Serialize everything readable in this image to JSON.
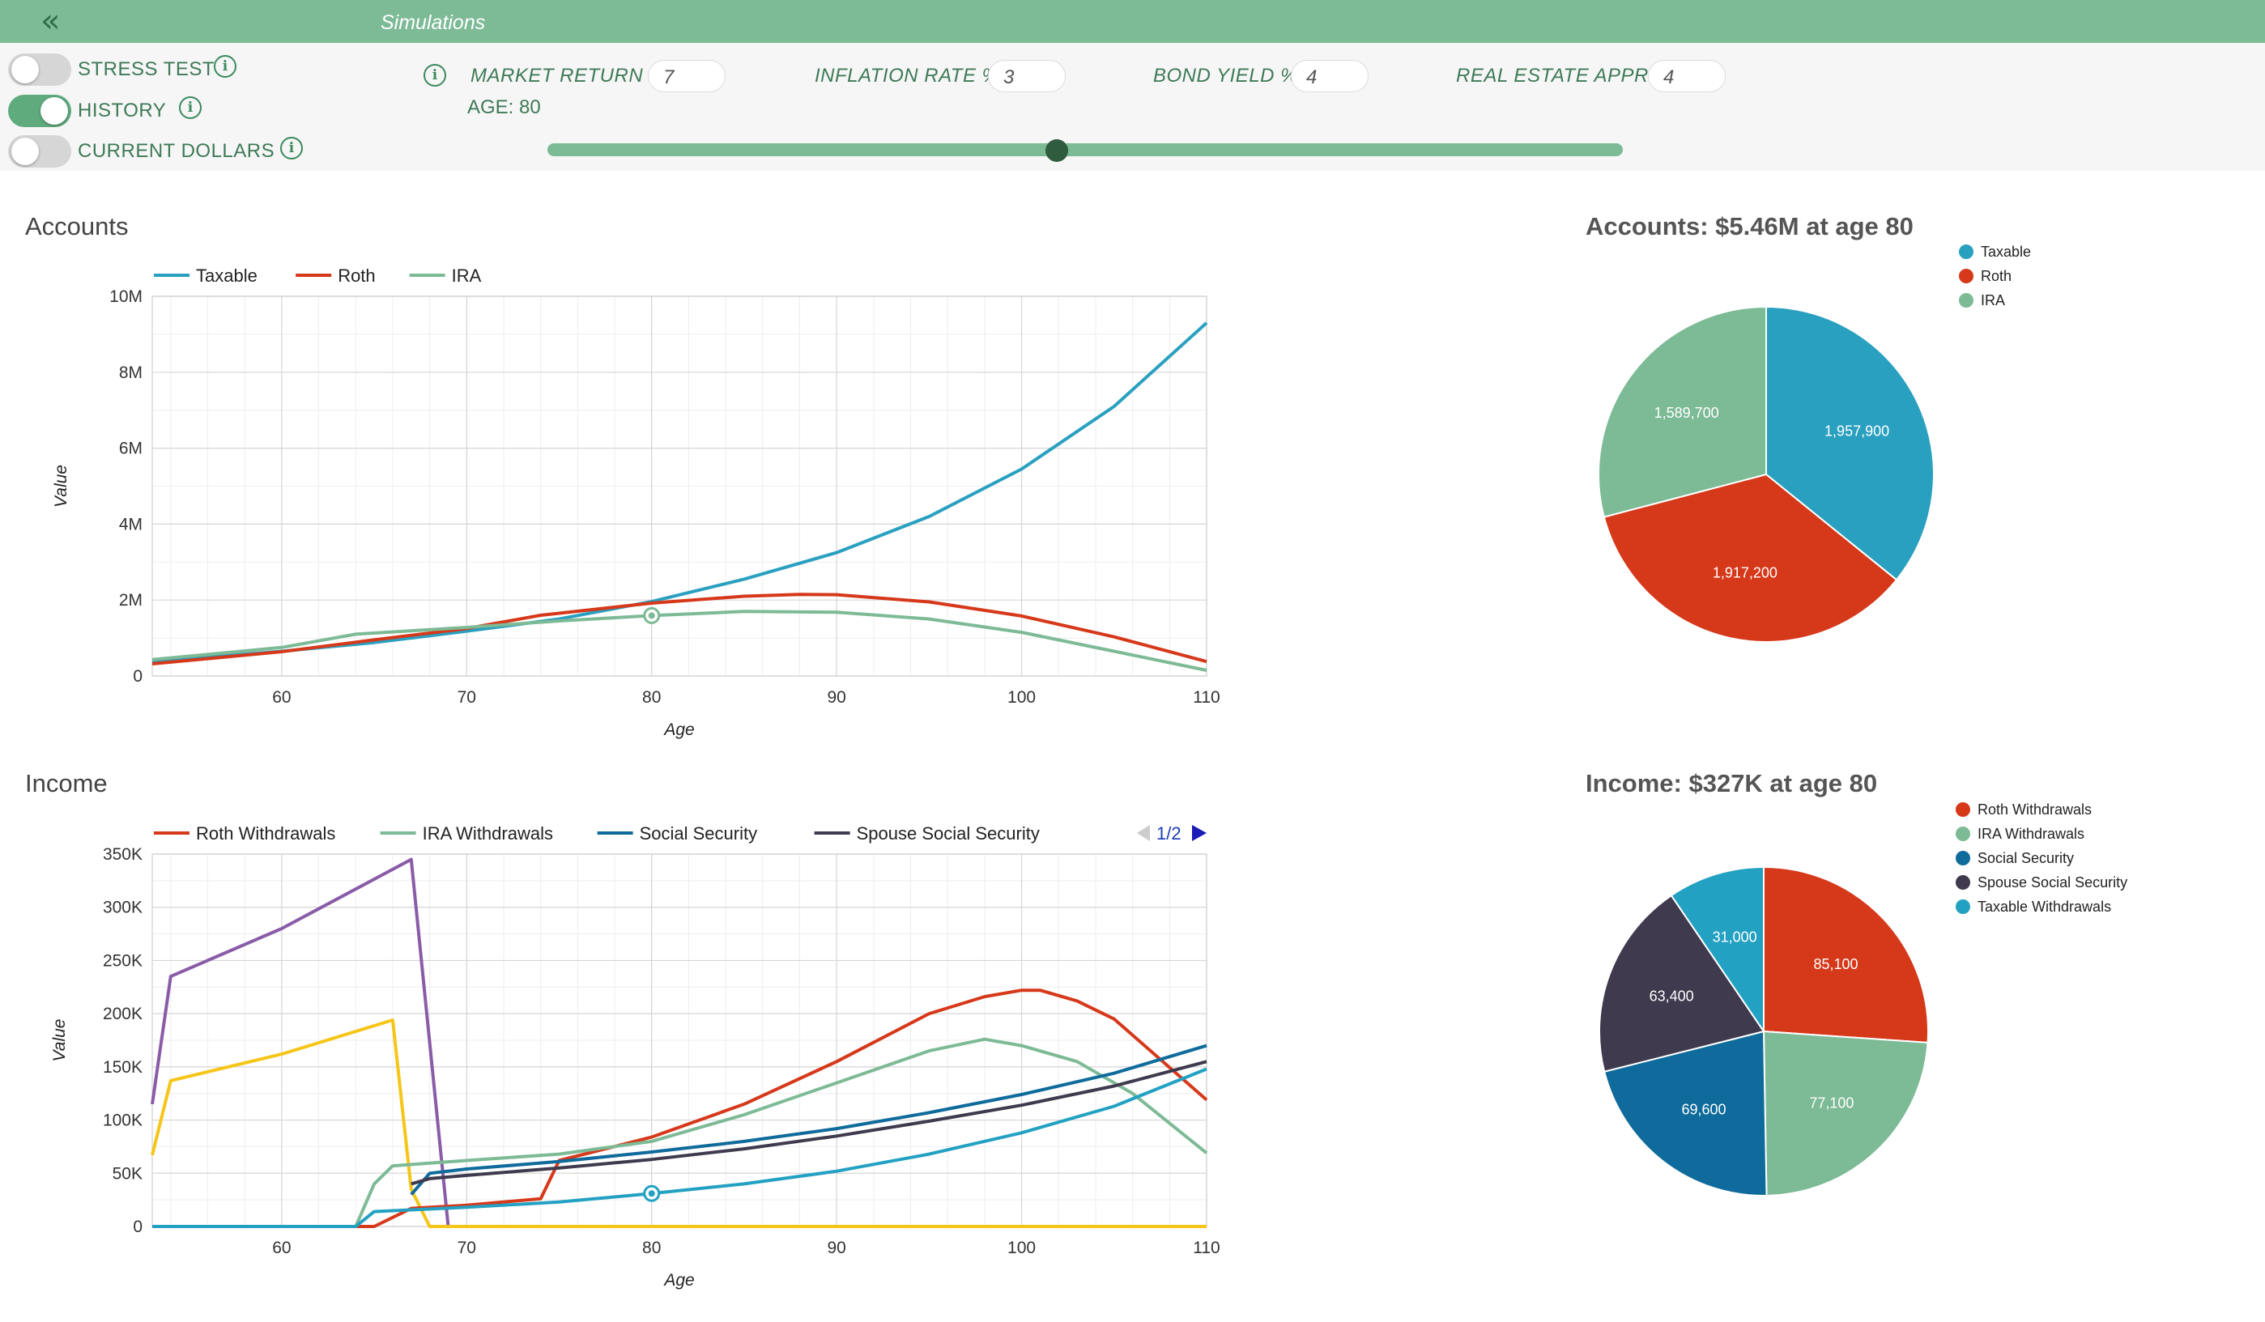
{
  "header": {
    "collapse_icon": "double-chevron-left-icon",
    "title": "Simulations"
  },
  "toggles": [
    {
      "label": "STRESS TEST",
      "on": false
    },
    {
      "label": "HISTORY",
      "on": true
    },
    {
      "label": "CURRENT DOLLARS",
      "on": false
    }
  ],
  "params": [
    {
      "label": "MARKET RETURN %",
      "value": "7"
    },
    {
      "label": "INFLATION RATE %",
      "value": "3"
    },
    {
      "label": "BOND YIELD %",
      "value": "4"
    },
    {
      "label": "REAL ESTATE APPR %",
      "value": "4"
    }
  ],
  "age_slider": {
    "label": "AGE: 80",
    "min": 53,
    "max": 110,
    "value": 80
  },
  "colors": {
    "taxable": "#2aa0c0",
    "roth": "#d6381a",
    "ira": "#7dba96",
    "social_security": "#0f6b9c",
    "spouse_social_security": "#3f3a4e",
    "taxable_withdrawals": "#23a1c2",
    "purple": "#8a5ca8",
    "yellow": "#f5c518",
    "accent": "#7dba96"
  },
  "chart_data": [
    {
      "type": "line",
      "title": "Accounts",
      "xlabel": "Age",
      "ylabel": "Value",
      "xlim": [
        53,
        110
      ],
      "ylim": [
        0,
        10000000
      ],
      "x_ticks": [
        "60",
        "70",
        "80",
        "90",
        "100",
        "110"
      ],
      "y_ticks": [
        "0",
        "2M",
        "4M",
        "6M",
        "8M",
        "10M"
      ],
      "grid": true,
      "legend_position": "top-left",
      "legend": [
        "Taxable",
        "Roth",
        "IRA"
      ],
      "marker": {
        "series": "IRA",
        "x": 80,
        "y": 1590000
      },
      "series": [
        {
          "name": "Taxable",
          "color": "#2aa0c0",
          "points": [
            [
              53,
              380000
            ],
            [
              60,
              650000
            ],
            [
              65,
              880000
            ],
            [
              70,
              1180000
            ],
            [
              75,
              1500000
            ],
            [
              80,
              1960000
            ],
            [
              85,
              2550000
            ],
            [
              90,
              3250000
            ],
            [
              95,
              4200000
            ],
            [
              100,
              5450000
            ],
            [
              105,
              7100000
            ],
            [
              110,
              9300000
            ]
          ]
        },
        {
          "name": "Roth",
          "color": "#d6381a",
          "points": [
            [
              53,
              320000
            ],
            [
              60,
              640000
            ],
            [
              65,
              950000
            ],
            [
              70,
              1250000
            ],
            [
              74,
              1600000
            ],
            [
              80,
              1920000
            ],
            [
              85,
              2100000
            ],
            [
              88,
              2150000
            ],
            [
              90,
              2140000
            ],
            [
              95,
              1950000
            ],
            [
              100,
              1580000
            ],
            [
              105,
              1030000
            ],
            [
              110,
              380000
            ]
          ]
        },
        {
          "name": "IRA",
          "color": "#7dba96",
          "points": [
            [
              53,
              430000
            ],
            [
              60,
              750000
            ],
            [
              64,
              1100000
            ],
            [
              70,
              1280000
            ],
            [
              75,
              1450000
            ],
            [
              80,
              1590000
            ],
            [
              85,
              1700000
            ],
            [
              90,
              1680000
            ],
            [
              95,
              1500000
            ],
            [
              100,
              1150000
            ],
            [
              105,
              650000
            ],
            [
              110,
              150000
            ]
          ]
        }
      ]
    },
    {
      "type": "line",
      "title": "Income",
      "xlabel": "Age",
      "ylabel": "Value",
      "xlim": [
        53,
        110
      ],
      "ylim": [
        0,
        350000
      ],
      "x_ticks": [
        "60",
        "70",
        "80",
        "90",
        "100",
        "110"
      ],
      "y_ticks": [
        "0",
        "50K",
        "100K",
        "150K",
        "200K",
        "250K",
        "300K",
        "350K"
      ],
      "grid": true,
      "legend_position": "top-left",
      "legend": [
        "Roth Withdrawals",
        "IRA Withdrawals",
        "Social Security",
        "Spouse Social Security"
      ],
      "legend_page": "1/2",
      "marker": {
        "series": "Taxable Withdrawals",
        "x": 80,
        "y": 31000
      },
      "series": [
        {
          "name": "",
          "color": "#8a5ca8",
          "points": [
            [
              53,
              115000
            ],
            [
              54,
              235000
            ],
            [
              60,
              280000
            ],
            [
              67,
              345000
            ],
            [
              69,
              0
            ]
          ]
        },
        {
          "name": "",
          "color": "#f5c518",
          "points": [
            [
              53,
              67000
            ],
            [
              54,
              137000
            ],
            [
              60,
              162000
            ],
            [
              66,
              194000
            ],
            [
              67,
              35000
            ],
            [
              68,
              0
            ],
            [
              110,
              0
            ]
          ]
        },
        {
          "name": "Roth Withdrawals",
          "color": "#d6381a",
          "points": [
            [
              53,
              0
            ],
            [
              65,
              0
            ],
            [
              67,
              17000
            ],
            [
              70,
              20000
            ],
            [
              74,
              26000
            ],
            [
              75,
              62000
            ],
            [
              80,
              84000
            ],
            [
              85,
              115000
            ],
            [
              90,
              155000
            ],
            [
              95,
              200000
            ],
            [
              98,
              216000
            ],
            [
              100,
              222000
            ],
            [
              101,
              222000
            ],
            [
              103,
              212000
            ],
            [
              105,
              195000
            ],
            [
              110,
              119000
            ]
          ]
        },
        {
          "name": "IRA Withdrawals",
          "color": "#7dba96",
          "points": [
            [
              53,
              0
            ],
            [
              64,
              0
            ],
            [
              65,
              40000
            ],
            [
              66,
              57000
            ],
            [
              70,
              62000
            ],
            [
              75,
              68000
            ],
            [
              80,
              80000
            ],
            [
              85,
              105000
            ],
            [
              90,
              135000
            ],
            [
              95,
              165000
            ],
            [
              98,
              176000
            ],
            [
              100,
              170000
            ],
            [
              103,
              155000
            ],
            [
              106,
              125000
            ],
            [
              110,
              69000
            ]
          ]
        },
        {
          "name": "Social Security",
          "color": "#0f6b9c",
          "points": [
            [
              67,
              30000
            ],
            [
              68,
              50000
            ],
            [
              70,
              54000
            ],
            [
              75,
              61000
            ],
            [
              80,
              70000
            ],
            [
              85,
              80000
            ],
            [
              90,
              92000
            ],
            [
              95,
              107000
            ],
            [
              100,
              124000
            ],
            [
              105,
              144000
            ],
            [
              110,
              170000
            ]
          ]
        },
        {
          "name": "Spouse Social Security",
          "color": "#3f3a4e",
          "points": [
            [
              67,
              40000
            ],
            [
              68,
              45000
            ],
            [
              70,
              48000
            ],
            [
              75,
              55000
            ],
            [
              80,
              63000
            ],
            [
              85,
              73000
            ],
            [
              90,
              85000
            ],
            [
              95,
              99000
            ],
            [
              100,
              114000
            ],
            [
              105,
              132000
            ],
            [
              110,
              155000
            ]
          ]
        },
        {
          "name": "",
          "color": "#23a1c2",
          "points": [
            [
              53,
              0
            ],
            [
              64,
              0
            ],
            [
              65,
              14000
            ],
            [
              70,
              18000
            ],
            [
              75,
              23000
            ],
            [
              80,
              31000
            ],
            [
              85,
              40000
            ],
            [
              90,
              52000
            ],
            [
              95,
              68000
            ],
            [
              100,
              88000
            ],
            [
              105,
              113000
            ],
            [
              110,
              148000
            ]
          ]
        }
      ]
    },
    {
      "type": "pie",
      "title": "Accounts: $5.46M at age 80",
      "legend_position": "top-right",
      "slices": [
        {
          "label": "Taxable",
          "value": 1957900,
          "value_label": "1,957,900",
          "color": "#2aa0c0"
        },
        {
          "label": "Roth",
          "value": 1917200,
          "value_label": "1,917,200",
          "color": "#d6381a"
        },
        {
          "label": "IRA",
          "value": 1589700,
          "value_label": "1,589,700",
          "color": "#7dba96"
        }
      ]
    },
    {
      "type": "pie",
      "title": "Income: $327K at age 80",
      "legend_position": "top-right",
      "slices": [
        {
          "label": "Roth Withdrawals",
          "value": 85100,
          "value_label": "85,100",
          "color": "#d6381a"
        },
        {
          "label": "IRA Withdrawals",
          "value": 77100,
          "value_label": "77,100",
          "color": "#7dba96"
        },
        {
          "label": "Social Security",
          "value": 69600,
          "value_label": "69,600",
          "color": "#0f6b9c"
        },
        {
          "label": "Spouse Social Security",
          "value": 63400,
          "value_label": "63,400",
          "color": "#3f3a4e"
        },
        {
          "label": "Taxable Withdrawals",
          "value": 31000,
          "value_label": "31,000",
          "color": "#23a1c2"
        }
      ]
    }
  ]
}
